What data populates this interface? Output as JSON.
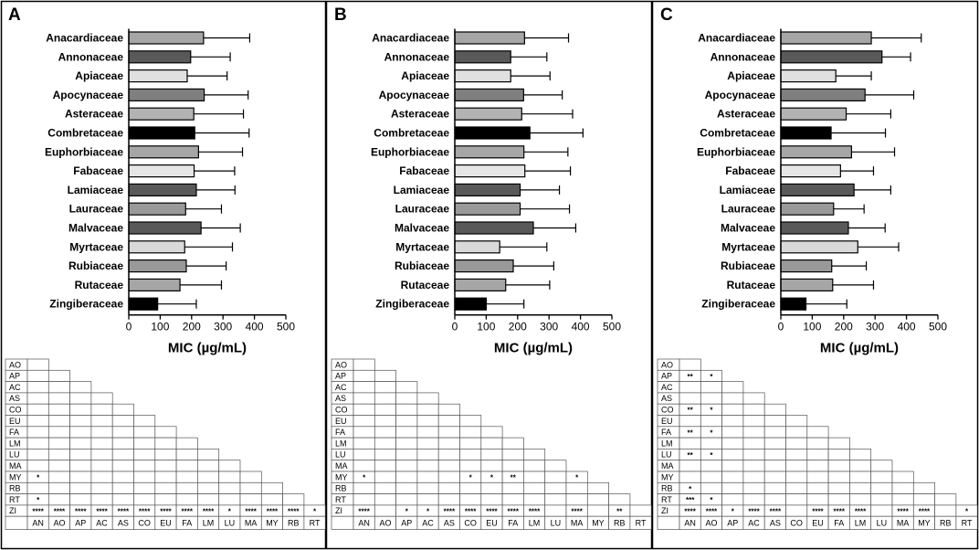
{
  "figure": {
    "families": [
      "Anacardiaceae",
      "Annonaceae",
      "Apiaceae",
      "Apocynaceae",
      "Asteraceae",
      "Combretaceae",
      "Euphorbiaceae",
      "Fabaceae",
      "Lamiaceae",
      "Lauraceae",
      "Malvaceae",
      "Myrtaceae",
      "Rubiaceae",
      "Rutaceae",
      "Zingiberaceae"
    ],
    "bar_colors": [
      "#a6a6a6",
      "#595959",
      "#e0e0e0",
      "#7f7f7f",
      "#b3b3b3",
      "#000000",
      "#a6a6a6",
      "#e6e6e6",
      "#595959",
      "#999999",
      "#595959",
      "#d9d9d9",
      "#999999",
      "#a6a6a6",
      "#000000"
    ],
    "row_labels": [
      "AO",
      "AP",
      "AC",
      "AS",
      "CO",
      "EU",
      "FA",
      "LM",
      "LU",
      "MA",
      "MY",
      "RB",
      "RT",
      "ZI"
    ],
    "col_labels": [
      "AN",
      "AO",
      "AP",
      "AC",
      "AS",
      "CO",
      "EU",
      "FA",
      "LM",
      "LU",
      "MA",
      "MY",
      "RB",
      "RT"
    ]
  },
  "chart_data": [
    {
      "type": "bar",
      "panel": "A",
      "orientation": "horizontal",
      "xlabel": "MIC (µg/mL)",
      "xlim": [
        0,
        500
      ],
      "xticks": [
        "0",
        "100",
        "200",
        "300",
        "400",
        "500"
      ],
      "categories": [
        "Anacardiaceae",
        "Annonaceae",
        "Apiaceae",
        "Apocynaceae",
        "Asteraceae",
        "Combretaceae",
        "Euphorbiaceae",
        "Fabaceae",
        "Lamiaceae",
        "Lauraceae",
        "Malvaceae",
        "Myrtaceae",
        "Rubiaceae",
        "Rutaceae",
        "Zingiberaceae"
      ],
      "values": [
        238,
        197,
        186,
        240,
        207,
        210,
        222,
        208,
        215,
        181,
        230,
        178,
        183,
        163,
        92
      ],
      "error_upper": [
        385,
        323,
        313,
        380,
        365,
        383,
        362,
        337,
        338,
        295,
        355,
        330,
        310,
        295,
        215
      ],
      "significance": [
        {
          "row": "MY",
          "col": "AN",
          "mark": "*"
        },
        {
          "row": "RT",
          "col": "AN",
          "mark": "*"
        },
        {
          "row": "ZI",
          "col": "AN",
          "mark": "****"
        },
        {
          "row": "ZI",
          "col": "AO",
          "mark": "****"
        },
        {
          "row": "ZI",
          "col": "AP",
          "mark": "****"
        },
        {
          "row": "ZI",
          "col": "AC",
          "mark": "****"
        },
        {
          "row": "ZI",
          "col": "AS",
          "mark": "****"
        },
        {
          "row": "ZI",
          "col": "CO",
          "mark": "****"
        },
        {
          "row": "ZI",
          "col": "EU",
          "mark": "****"
        },
        {
          "row": "ZI",
          "col": "FA",
          "mark": "****"
        },
        {
          "row": "ZI",
          "col": "LM",
          "mark": "****"
        },
        {
          "row": "ZI",
          "col": "LU",
          "mark": "*"
        },
        {
          "row": "ZI",
          "col": "MA",
          "mark": "****"
        },
        {
          "row": "ZI",
          "col": "MY",
          "mark": "****"
        },
        {
          "row": "ZI",
          "col": "RB",
          "mark": "****"
        },
        {
          "row": "ZI",
          "col": "RT",
          "mark": "*"
        }
      ]
    },
    {
      "type": "bar",
      "panel": "B",
      "orientation": "horizontal",
      "xlabel": "MIC (µg/mL)",
      "xlim": [
        0,
        500
      ],
      "xticks": [
        "0",
        "100",
        "200",
        "300",
        "400",
        "500"
      ],
      "categories": [
        "Anacardiaceae",
        "Annonaceae",
        "Apiaceae",
        "Apocynaceae",
        "Asteraceae",
        "Combretaceae",
        "Euphorbiaceae",
        "Fabaceae",
        "Lamiaceae",
        "Lauraceae",
        "Malvaceae",
        "Myrtaceae",
        "Rubiaceae",
        "Rutaceae",
        "Zingiberaceae"
      ],
      "values": [
        222,
        178,
        178,
        219,
        213,
        239,
        220,
        223,
        208,
        208,
        250,
        143,
        186,
        162,
        100
      ],
      "error_upper": [
        362,
        293,
        303,
        342,
        375,
        408,
        360,
        368,
        333,
        365,
        385,
        293,
        315,
        302,
        220
      ],
      "significance": [
        {
          "row": "MY",
          "col": "AN",
          "mark": "*"
        },
        {
          "row": "MY",
          "col": "CO",
          "mark": "*"
        },
        {
          "row": "MY",
          "col": "EU",
          "mark": "*"
        },
        {
          "row": "MY",
          "col": "FA",
          "mark": "**"
        },
        {
          "row": "MY",
          "col": "MA",
          "mark": "*"
        },
        {
          "row": "ZI",
          "col": "AN",
          "mark": "****"
        },
        {
          "row": "ZI",
          "col": "AP",
          "mark": "*"
        },
        {
          "row": "ZI",
          "col": "AC",
          "mark": "*"
        },
        {
          "row": "ZI",
          "col": "AS",
          "mark": "****"
        },
        {
          "row": "ZI",
          "col": "CO",
          "mark": "****"
        },
        {
          "row": "ZI",
          "col": "EU",
          "mark": "****"
        },
        {
          "row": "ZI",
          "col": "FA",
          "mark": "****"
        },
        {
          "row": "ZI",
          "col": "LM",
          "mark": "****"
        },
        {
          "row": "ZI",
          "col": "MA",
          "mark": "****"
        },
        {
          "row": "ZI",
          "col": "RB",
          "mark": "**"
        }
      ]
    },
    {
      "type": "bar",
      "panel": "C",
      "orientation": "horizontal",
      "xlabel": "MIC (µg/mL)",
      "xlim": [
        0,
        500
      ],
      "xticks": [
        "0",
        "100",
        "200",
        "300",
        "400",
        "500"
      ],
      "categories": [
        "Anacardiaceae",
        "Annonaceae",
        "Apiaceae",
        "Apocynaceae",
        "Asteraceae",
        "Combretaceae",
        "Euphorbiaceae",
        "Fabaceae",
        "Lamiaceae",
        "Lauraceae",
        "Malvaceae",
        "Myrtaceae",
        "Rubiaceae",
        "Rutaceae",
        "Zingiberaceae"
      ],
      "values": [
        288,
        322,
        175,
        268,
        208,
        160,
        225,
        190,
        233,
        168,
        215,
        245,
        162,
        165,
        80
      ],
      "error_upper": [
        447,
        413,
        288,
        423,
        350,
        333,
        362,
        295,
        350,
        265,
        332,
        375,
        272,
        295,
        210
      ],
      "significance": [
        {
          "row": "AP",
          "col": "AN",
          "mark": "**"
        },
        {
          "row": "AP",
          "col": "AO",
          "mark": "*"
        },
        {
          "row": "CO",
          "col": "AN",
          "mark": "**"
        },
        {
          "row": "CO",
          "col": "AO",
          "mark": "*"
        },
        {
          "row": "FA",
          "col": "AN",
          "mark": "**"
        },
        {
          "row": "FA",
          "col": "AO",
          "mark": "*"
        },
        {
          "row": "LU",
          "col": "AN",
          "mark": "**"
        },
        {
          "row": "LU",
          "col": "AO",
          "mark": "*"
        },
        {
          "row": "RB",
          "col": "AN",
          "mark": "*"
        },
        {
          "row": "RT",
          "col": "AN",
          "mark": "***"
        },
        {
          "row": "RT",
          "col": "AO",
          "mark": "*"
        },
        {
          "row": "ZI",
          "col": "AN",
          "mark": "****"
        },
        {
          "row": "ZI",
          "col": "AO",
          "mark": "****"
        },
        {
          "row": "ZI",
          "col": "AP",
          "mark": "*"
        },
        {
          "row": "ZI",
          "col": "AC",
          "mark": "****"
        },
        {
          "row": "ZI",
          "col": "AS",
          "mark": "****"
        },
        {
          "row": "ZI",
          "col": "EU",
          "mark": "****"
        },
        {
          "row": "ZI",
          "col": "FA",
          "mark": "****"
        },
        {
          "row": "ZI",
          "col": "LM",
          "mark": "****"
        },
        {
          "row": "ZI",
          "col": "MA",
          "mark": "****"
        },
        {
          "row": "ZI",
          "col": "MY",
          "mark": "****"
        },
        {
          "row": "ZI",
          "col": "RT",
          "mark": "*"
        }
      ]
    }
  ]
}
